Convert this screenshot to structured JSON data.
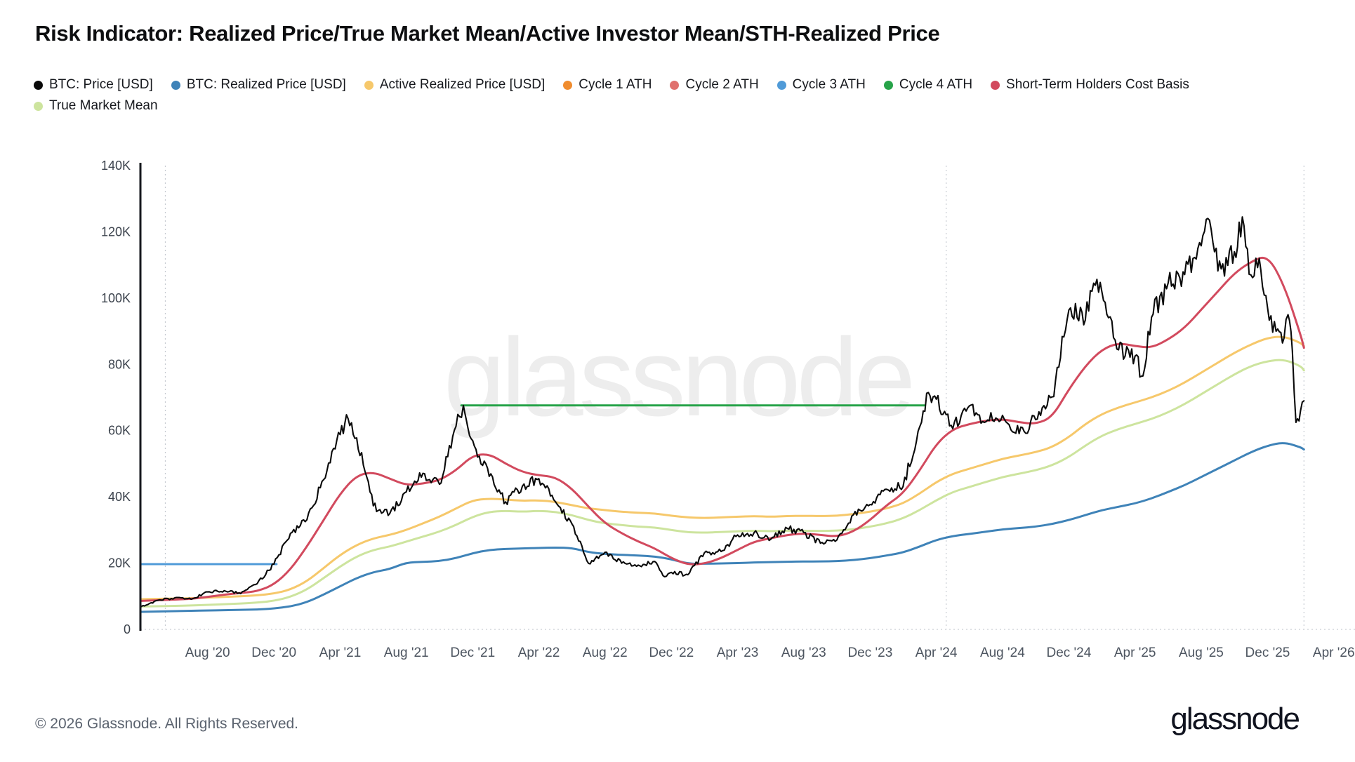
{
  "page": {
    "title": "Risk Indicator: Realized Price/True Market Mean/Active Investor Mean/STH-Realized Price",
    "watermark": "glassnode",
    "footer": {
      "copyright": "© 2026 Glassnode. All Rights Reserved.",
      "brand": "glassnode"
    }
  },
  "legend": [
    {
      "label": "BTC: Price [USD]",
      "color": "#0a0a0a"
    },
    {
      "label": "BTC: Realized Price [USD]",
      "color": "#3f83b8"
    },
    {
      "label": "Active Realized Price [USD]",
      "color": "#f6c86b"
    },
    {
      "label": "Cycle 1 ATH",
      "color": "#f08c2e"
    },
    {
      "label": "Cycle 2 ATH",
      "color": "#e0716e"
    },
    {
      "label": "Cycle 3 ATH",
      "color": "#509bd8"
    },
    {
      "label": "Cycle 4 ATH",
      "color": "#27a349"
    },
    {
      "label": "Short-Term Holders Cost Basis",
      "color": "#d24a5e"
    },
    {
      "label": "True Market Mean",
      "color": "#cde49e"
    }
  ],
  "chart_data": {
    "type": "line",
    "title": "Risk Indicator: Realized Price/True Market Mean/Active Investor Mean/STH-Realized Price",
    "x_unit": "decimal_year",
    "y_unit": "USD",
    "y_value_scale": "thousands",
    "xlim": [
      2020.245,
      2026.357
    ],
    "ylim": [
      0,
      140
    ],
    "grid": false,
    "legend_position": "top-left",
    "background": "#ffffff",
    "yticks": {
      "values": [
        0,
        20,
        40,
        60,
        80,
        100,
        120,
        140
      ],
      "labels": [
        "0",
        "20K",
        "40K",
        "60K",
        "80K",
        "100K",
        "120K",
        "140K"
      ]
    },
    "xticks": {
      "values": [
        2020.583,
        2020.917,
        2021.25,
        2021.583,
        2021.917,
        2022.25,
        2022.583,
        2022.917,
        2023.25,
        2023.583,
        2023.917,
        2024.25,
        2024.583,
        2024.917,
        2025.25,
        2025.583,
        2025.917,
        2026.25
      ],
      "labels": [
        "Aug '20",
        "Dec '20",
        "Apr '21",
        "Aug '21",
        "Dec '21",
        "Apr '22",
        "Aug '22",
        "Dec '22",
        "Apr '23",
        "Aug '23",
        "Dec '23",
        "Apr '24",
        "Aug '24",
        "Dec '24",
        "Apr '25",
        "Aug '25",
        "Dec '25",
        "Apr '26"
      ]
    },
    "vertical_guides": [
      2020.37,
      2024.3,
      2026.1
    ],
    "x_monthly": [
      2020.25,
      2020.333,
      2020.417,
      2020.5,
      2020.583,
      2020.667,
      2020.75,
      2020.833,
      2020.917,
      2021.0,
      2021.083,
      2021.167,
      2021.25,
      2021.333,
      2021.417,
      2021.5,
      2021.583,
      2021.667,
      2021.75,
      2021.833,
      2021.917,
      2022.0,
      2022.083,
      2022.167,
      2022.25,
      2022.333,
      2022.417,
      2022.5,
      2022.583,
      2022.667,
      2022.75,
      2022.833,
      2022.917,
      2023.0,
      2023.083,
      2023.167,
      2023.25,
      2023.333,
      2023.417,
      2023.5,
      2023.583,
      2023.667,
      2023.75,
      2023.833,
      2023.917,
      2024.0,
      2024.083,
      2024.167,
      2024.25,
      2024.333,
      2024.417,
      2024.5,
      2024.583,
      2024.667,
      2024.75,
      2024.833,
      2024.917,
      2025.0,
      2025.083,
      2025.167,
      2025.25,
      2025.333,
      2025.417,
      2025.5,
      2025.583,
      2025.667,
      2025.75,
      2025.833,
      2025.917,
      2026.0,
      2026.083,
      2026.1
    ],
    "series": [
      {
        "name": "Cycle 3 ATH",
        "color": "#509bd8",
        "width": 3,
        "x": [
          2020.245,
          2020.93
        ],
        "values": [
          19.7,
          19.7
        ]
      },
      {
        "name": "Cycle 4 ATH",
        "color": "#27a349",
        "width": 3,
        "x": [
          2021.86,
          2024.19
        ],
        "values": [
          67.6,
          67.6
        ]
      },
      {
        "name": "True Market Mean",
        "color": "#cde49e",
        "width": 3,
        "values": [
          6.9,
          7.0,
          7.1,
          7.2,
          7.4,
          7.6,
          7.8,
          8.1,
          8.6,
          9.8,
          12.0,
          15.5,
          19.0,
          22.0,
          24.0,
          25.0,
          26.5,
          28.0,
          29.5,
          31.5,
          34.0,
          35.5,
          35.8,
          35.5,
          35.8,
          35.5,
          34.5,
          33.0,
          32.0,
          31.5,
          31.0,
          30.8,
          30.0,
          29.3,
          29.2,
          29.4,
          29.6,
          29.8,
          29.6,
          29.8,
          29.8,
          29.7,
          29.8,
          30.2,
          31.0,
          32.0,
          33.5,
          36.0,
          39.0,
          41.5,
          43.0,
          44.5,
          46.0,
          47.0,
          48.0,
          49.5,
          52.0,
          55.5,
          58.5,
          60.5,
          62.0,
          63.5,
          65.5,
          68.0,
          71.0,
          74.0,
          77.0,
          79.5,
          81.0,
          81.5,
          79.5,
          78.2
        ]
      },
      {
        "name": "Active Realized Price [USD]",
        "color": "#f6c86b",
        "width": 3,
        "values": [
          9.1,
          9.2,
          9.3,
          9.4,
          9.6,
          9.8,
          10.0,
          10.3,
          10.8,
          12.0,
          14.5,
          18.5,
          22.5,
          25.5,
          27.5,
          28.5,
          30.0,
          32.0,
          34.0,
          36.5,
          39.0,
          39.5,
          39.2,
          38.8,
          39.0,
          38.5,
          37.5,
          36.5,
          36.0,
          35.5,
          35.2,
          35.0,
          34.3,
          33.8,
          33.6,
          33.8,
          34.0,
          34.2,
          34.0,
          34.2,
          34.3,
          34.2,
          34.3,
          34.8,
          35.5,
          36.5,
          38.0,
          41.0,
          44.5,
          47.0,
          48.5,
          50.0,
          51.5,
          52.5,
          53.5,
          55.0,
          58.0,
          62.0,
          65.0,
          67.0,
          68.5,
          70.0,
          72.0,
          74.5,
          77.5,
          80.5,
          83.5,
          86.0,
          88.0,
          88.5,
          86.5,
          85.5
        ]
      },
      {
        "name": "BTC: Realized Price [USD]",
        "color": "#3f83b8",
        "width": 3,
        "values": [
          5.3,
          5.4,
          5.5,
          5.6,
          5.7,
          5.8,
          5.9,
          6.0,
          6.3,
          6.9,
          8.2,
          10.5,
          13.0,
          15.5,
          17.3,
          18.2,
          20.2,
          20.4,
          20.6,
          21.5,
          23.0,
          24.0,
          24.3,
          24.4,
          24.6,
          24.7,
          24.6,
          23.3,
          22.8,
          22.5,
          22.3,
          22.0,
          21.2,
          19.8,
          19.8,
          19.9,
          20.0,
          20.2,
          20.3,
          20.4,
          20.5,
          20.5,
          20.6,
          20.9,
          21.5,
          22.3,
          23.2,
          25.0,
          27.0,
          28.2,
          28.8,
          29.5,
          30.2,
          30.6,
          31.0,
          31.8,
          33.0,
          34.5,
          36.0,
          37.0,
          38.0,
          39.5,
          41.5,
          43.5,
          46.0,
          48.5,
          51.0,
          53.5,
          55.5,
          56.5,
          55.0,
          54.3
        ]
      },
      {
        "name": "Short-Term Holders Cost Basis",
        "color": "#d24a5e",
        "width": 3,
        "values": [
          8.6,
          8.8,
          9.0,
          9.2,
          9.8,
          10.5,
          11.0,
          11.5,
          13.5,
          18.0,
          25.0,
          33.0,
          41.0,
          46.5,
          47.5,
          45.5,
          43.5,
          44.0,
          45.0,
          48.0,
          52.5,
          53.0,
          50.0,
          47.5,
          46.5,
          46.0,
          42.5,
          37.0,
          32.0,
          29.0,
          26.5,
          24.5,
          21.5,
          19.5,
          19.8,
          21.5,
          24.0,
          26.5,
          27.5,
          28.5,
          29.0,
          28.5,
          28.0,
          29.5,
          33.0,
          37.5,
          41.0,
          48.0,
          56.0,
          60.5,
          62.0,
          63.0,
          63.5,
          62.5,
          62.0,
          64.0,
          72.5,
          79.5,
          84.5,
          86.5,
          85.5,
          85.0,
          87.5,
          91.0,
          96.5,
          102.0,
          107.5,
          111.0,
          113.0,
          104.0,
          89.0,
          85.0
        ]
      },
      {
        "name": "BTC: Price [USD]",
        "color": "#0a0a0a",
        "width": 2.1,
        "render": "volatile",
        "x": [
          2020.25,
          2020.29,
          2020.333,
          2020.417,
          2020.5,
          2020.583,
          2020.667,
          2020.75,
          2020.833,
          2020.917,
          2021.0,
          2021.083,
          2021.167,
          2021.25,
          2021.29,
          2021.333,
          2021.417,
          2021.5,
          2021.583,
          2021.667,
          2021.75,
          2021.833,
          2021.87,
          2021.917,
          2022.0,
          2022.083,
          2022.167,
          2022.25,
          2022.333,
          2022.417,
          2022.5,
          2022.583,
          2022.667,
          2022.75,
          2022.833,
          2022.875,
          2022.917,
          2023.0,
          2023.083,
          2023.167,
          2023.25,
          2023.333,
          2023.417,
          2023.5,
          2023.583,
          2023.667,
          2023.75,
          2023.833,
          2023.917,
          2024.0,
          2024.083,
          2024.167,
          2024.21,
          2024.25,
          2024.333,
          2024.417,
          2024.5,
          2024.583,
          2024.667,
          2024.75,
          2024.833,
          2024.917,
          2025.0,
          2025.042,
          2025.083,
          2025.167,
          2025.25,
          2025.29,
          2025.333,
          2025.417,
          2025.5,
          2025.583,
          2025.625,
          2025.667,
          2025.75,
          2025.79,
          2025.833,
          2025.875,
          2025.917,
          2025.96,
          2026.0,
          2026.02,
          2026.042,
          2026.06,
          2026.083,
          2026.1
        ],
        "values": [
          6.9,
          7.8,
          8.8,
          9.5,
          9.1,
          11.3,
          11.7,
          10.8,
          13.8,
          19.7,
          29.0,
          33.1,
          45.2,
          58.8,
          63.6,
          57.8,
          37.3,
          35.0,
          41.5,
          47.1,
          43.8,
          61.3,
          67.6,
          57.0,
          46.2,
          38.5,
          43.2,
          45.5,
          38.6,
          31.8,
          19.9,
          23.3,
          20.0,
          19.4,
          20.5,
          16.2,
          17.2,
          16.5,
          23.1,
          23.5,
          28.5,
          29.2,
          27.2,
          30.5,
          29.2,
          26.0,
          27.0,
          34.6,
          37.7,
          42.3,
          43.1,
          61.2,
          71.5,
          69.5,
          60.6,
          67.5,
          62.7,
          64.6,
          59.1,
          63.3,
          70.2,
          96.4,
          93.4,
          104.5,
          102.0,
          84.4,
          82.5,
          76.5,
          94.2,
          104.6,
          107.1,
          115.8,
          123.5,
          108.2,
          114.0,
          124.5,
          107.0,
          112.0,
          97.0,
          90.0,
          88.0,
          95.0,
          84.0,
          62.5,
          66.0,
          69.0
        ]
      }
    ]
  }
}
